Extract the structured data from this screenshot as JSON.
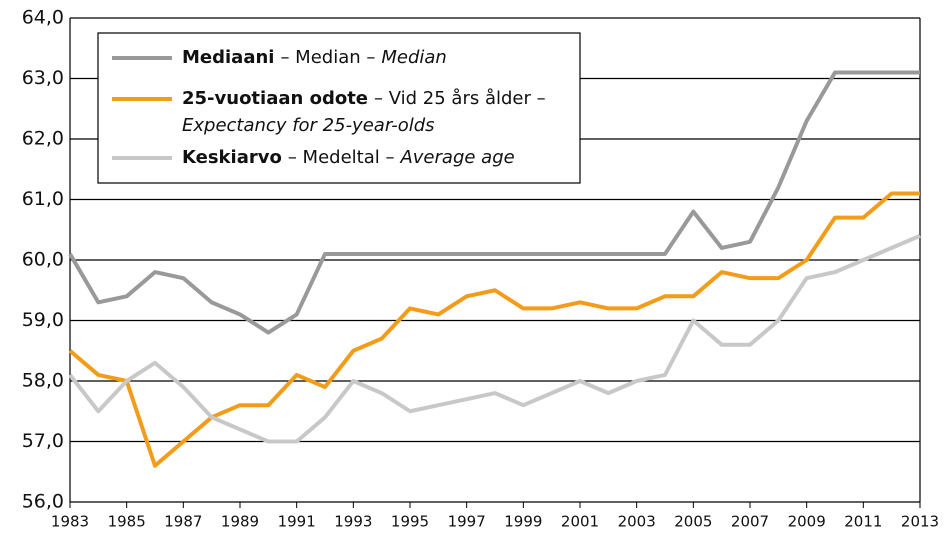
{
  "chart_data": {
    "type": "line",
    "x": [
      1983,
      1984,
      1985,
      1986,
      1987,
      1988,
      1989,
      1990,
      1991,
      1992,
      1993,
      1994,
      1995,
      1996,
      1997,
      1998,
      1999,
      2000,
      2001,
      2002,
      2003,
      2004,
      2005,
      2006,
      2007,
      2008,
      2009,
      2010,
      2011,
      2012,
      2013
    ],
    "series": [
      {
        "name": "Mediaani",
        "legend_sv": "– Median –",
        "legend_en": "Median",
        "color": "#999999",
        "values": [
          60.1,
          59.3,
          59.4,
          59.8,
          59.7,
          59.3,
          59.1,
          58.8,
          59.1,
          60.1,
          60.1,
          60.1,
          60.1,
          60.1,
          60.1,
          60.1,
          60.1,
          60.1,
          60.1,
          60.1,
          60.1,
          60.1,
          60.8,
          60.2,
          60.3,
          61.2,
          62.3,
          63.1,
          63.1,
          63.1,
          63.1
        ]
      },
      {
        "name": "25-vuotiaan odote",
        "legend_sv": "– Vid 25 års ålder –",
        "legend_en": "Expectancy for 25-year-olds",
        "color": "#f39c1a",
        "values": [
          58.5,
          58.1,
          58.0,
          56.6,
          57.0,
          57.4,
          57.6,
          57.6,
          58.1,
          57.9,
          58.5,
          58.7,
          59.2,
          59.1,
          59.4,
          59.5,
          59.2,
          59.2,
          59.3,
          59.2,
          59.2,
          59.4,
          59.4,
          59.8,
          59.7,
          59.7,
          60.0,
          60.7,
          60.7,
          61.1,
          61.1
        ]
      },
      {
        "name": "Keskiarvo",
        "legend_sv": "– Medeltal –",
        "legend_en": "Average age",
        "color": "#c8c8c8",
        "values": [
          58.1,
          57.5,
          58.0,
          58.3,
          57.9,
          57.4,
          57.2,
          57.0,
          57.0,
          57.4,
          58.0,
          57.8,
          57.5,
          57.6,
          57.7,
          57.8,
          57.6,
          57.8,
          58.0,
          57.8,
          58.0,
          58.1,
          59.0,
          58.6,
          58.6,
          59.0,
          59.7,
          59.8,
          60.0,
          60.2,
          60.4
        ]
      }
    ],
    "xlim": [
      1983,
      2013
    ],
    "xticks": [
      1983,
      1985,
      1987,
      1989,
      1991,
      1993,
      1995,
      1997,
      1999,
      2001,
      2003,
      2005,
      2007,
      2009,
      2011,
      2013
    ],
    "ylim": [
      56,
      64
    ],
    "yticks": [
      {
        "value": 56,
        "label": "56,0"
      },
      {
        "value": 57,
        "label": "57,0"
      },
      {
        "value": 58,
        "label": "58,0"
      },
      {
        "value": 59,
        "label": "59,0"
      },
      {
        "value": 60,
        "label": "60,0"
      },
      {
        "value": 61,
        "label": "61,0"
      },
      {
        "value": 62,
        "label": "62,0"
      },
      {
        "value": 63,
        "label": "63,0"
      },
      {
        "value": 64,
        "label": "64,0"
      }
    ],
    "grid": true
  }
}
